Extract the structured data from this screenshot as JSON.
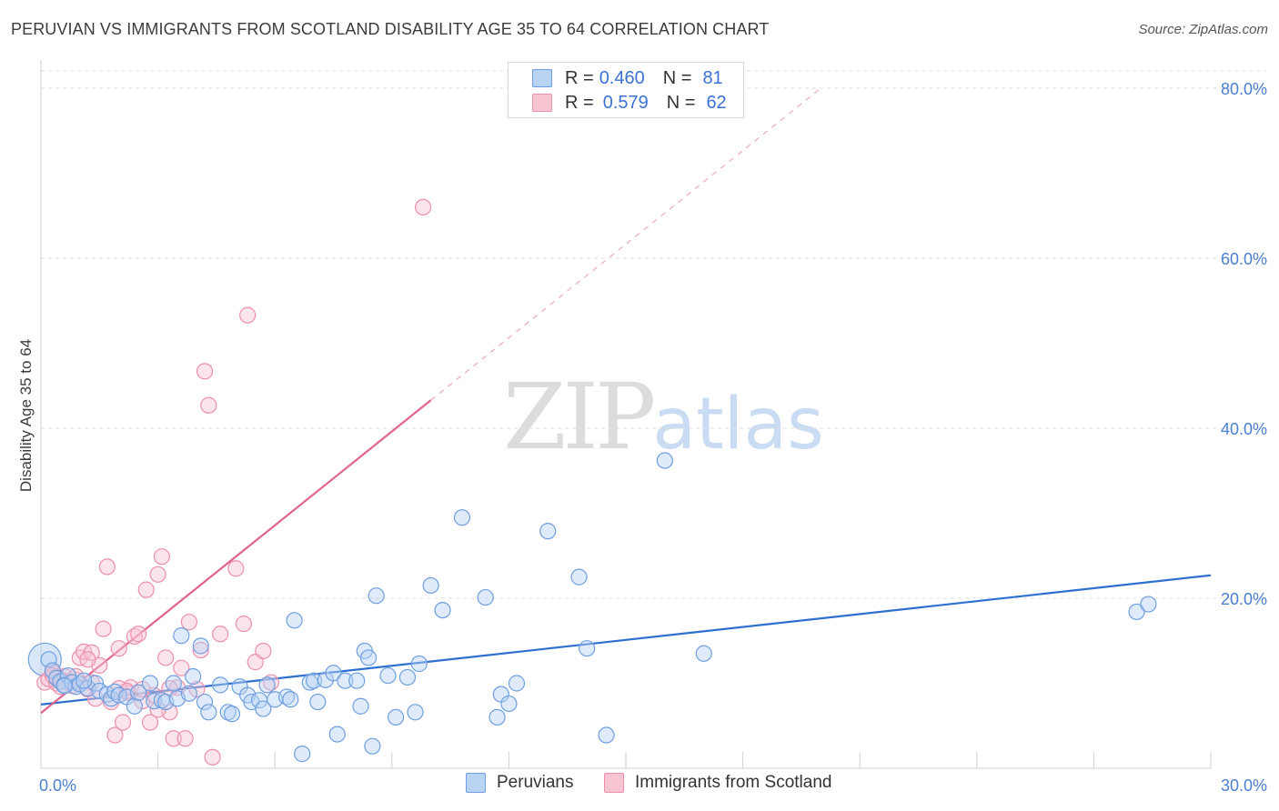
{
  "title": "PERUVIAN VS IMMIGRANTS FROM SCOTLAND DISABILITY AGE 35 TO 64 CORRELATION CHART",
  "source": "Source: ZipAtlas.com",
  "watermark": {
    "zip": "ZIP",
    "atlas": "atlas"
  },
  "legend": {
    "rows": [
      {
        "r_label": "R = ",
        "r_value": "0.460",
        "n_label": "N = ",
        "n_value": "81",
        "color": "#a9c8f2"
      },
      {
        "r_label": "R = ",
        "r_value": "0.579",
        "n_label": "N = ",
        "n_value": "62",
        "color": "#f6b7c8"
      }
    ]
  },
  "colors": {
    "blue_fill": "#b9d3f3",
    "blue_stroke": "#6f9fe0",
    "blue_line": "#2e6fcf",
    "pink_fill": "#f7c4d2",
    "pink_stroke": "#ec8fab",
    "pink_line": "#e0648f",
    "grid": "#dedede",
    "tick_text": "#4a7fd1"
  },
  "chart_data": {
    "type": "scatter",
    "title": "PERUVIAN VS IMMIGRANTS FROM SCOTLAND DISABILITY AGE 35 TO 64 CORRELATION CHART",
    "xlabel": "",
    "ylabel": "Disability Age 35 to 64",
    "xlim": [
      0,
      30
    ],
    "ylim": [
      0,
      80
    ],
    "x_tick_labels": [
      "0.0%",
      "30.0%"
    ],
    "y_tick_labels": [
      "20.0%",
      "40.0%",
      "60.0%",
      "80.0%"
    ],
    "y_ticks": [
      20,
      40,
      60,
      80
    ],
    "grid": true,
    "legend_position": "top-center",
    "series": [
      {
        "name": "Peruvians",
        "color": "#6f9fe0",
        "trend": {
          "x": [
            0,
            30
          ],
          "y": [
            7.5,
            22.7
          ]
        },
        "points": [
          [
            0.2,
            12.8
          ],
          [
            0.3,
            11.5
          ],
          [
            0.4,
            10.6
          ],
          [
            0.5,
            10.2
          ],
          [
            0.6,
            9.8
          ],
          [
            0.7,
            10.9
          ],
          [
            0.8,
            10.1
          ],
          [
            0.9,
            9.6
          ],
          [
            1.0,
            9.9
          ],
          [
            1.2,
            9.4
          ],
          [
            1.4,
            10.0
          ],
          [
            1.5,
            9.1
          ],
          [
            1.7,
            8.7
          ],
          [
            1.8,
            8.2
          ],
          [
            1.9,
            9.0
          ],
          [
            2.0,
            8.6
          ],
          [
            2.2,
            8.4
          ],
          [
            2.4,
            7.3
          ],
          [
            2.5,
            8.9
          ],
          [
            2.8,
            10.0
          ],
          [
            2.9,
            7.9
          ],
          [
            3.1,
            8.0
          ],
          [
            3.2,
            7.8
          ],
          [
            3.4,
            10.0
          ],
          [
            3.5,
            8.2
          ],
          [
            3.6,
            15.6
          ],
          [
            3.8,
            8.8
          ],
          [
            3.9,
            10.8
          ],
          [
            4.1,
            14.4
          ],
          [
            4.2,
            7.8
          ],
          [
            4.3,
            6.6
          ],
          [
            4.6,
            9.8
          ],
          [
            4.8,
            6.6
          ],
          [
            4.9,
            6.4
          ],
          [
            5.1,
            9.6
          ],
          [
            5.3,
            8.6
          ],
          [
            5.4,
            7.8
          ],
          [
            5.6,
            8.0
          ],
          [
            5.7,
            7.0
          ],
          [
            5.8,
            9.8
          ],
          [
            6.0,
            8.1
          ],
          [
            6.3,
            8.4
          ],
          [
            6.4,
            8.1
          ],
          [
            6.5,
            17.4
          ],
          [
            6.7,
            1.7
          ],
          [
            6.9,
            10.1
          ],
          [
            7.0,
            10.3
          ],
          [
            7.1,
            7.8
          ],
          [
            7.3,
            10.4
          ],
          [
            7.5,
            11.2
          ],
          [
            7.6,
            4.0
          ],
          [
            7.8,
            10.3
          ],
          [
            8.1,
            10.3
          ],
          [
            8.2,
            7.3
          ],
          [
            8.3,
            13.8
          ],
          [
            8.4,
            13.0
          ],
          [
            8.5,
            2.6
          ],
          [
            8.6,
            20.3
          ],
          [
            8.9,
            10.9
          ],
          [
            9.1,
            6.0
          ],
          [
            9.4,
            10.7
          ],
          [
            9.6,
            6.6
          ],
          [
            9.7,
            12.3
          ],
          [
            10.0,
            21.5
          ],
          [
            10.3,
            18.6
          ],
          [
            10.8,
            29.5
          ],
          [
            11.4,
            20.1
          ],
          [
            11.7,
            6.0
          ],
          [
            11.8,
            8.7
          ],
          [
            12.0,
            7.6
          ],
          [
            12.2,
            10.0
          ],
          [
            13.0,
            27.9
          ],
          [
            13.8,
            22.5
          ],
          [
            14.0,
            14.1
          ],
          [
            14.5,
            3.9
          ],
          [
            16.0,
            36.2
          ],
          [
            17.0,
            13.5
          ],
          [
            28.1,
            18.4
          ],
          [
            28.4,
            19.3
          ],
          [
            0.6,
            9.7
          ],
          [
            1.1,
            10.3
          ]
        ],
        "sizes_note": "one large point at origin",
        "large_points": [
          [
            0.1,
            12.8
          ]
        ]
      },
      {
        "name": "Immigrants from Scotland",
        "color": "#ec8fab",
        "trend": {
          "x": [
            0,
            10
          ],
          "y": [
            6.5,
            43.3
          ]
        },
        "trend_dashed": {
          "x": [
            10,
            20
          ],
          "y": [
            43.3,
            80
          ]
        },
        "points": [
          [
            0.1,
            10.1
          ],
          [
            0.2,
            10.5
          ],
          [
            0.3,
            11.3
          ],
          [
            0.4,
            10.0
          ],
          [
            0.5,
            9.6
          ],
          [
            0.6,
            10.8
          ],
          [
            0.7,
            10.2
          ],
          [
            0.8,
            9.7
          ],
          [
            0.9,
            10.4
          ],
          [
            1.0,
            13.0
          ],
          [
            1.1,
            13.7
          ],
          [
            1.2,
            9.3
          ],
          [
            1.3,
            10.1
          ],
          [
            1.4,
            8.2
          ],
          [
            1.5,
            12.1
          ],
          [
            1.6,
            16.4
          ],
          [
            1.7,
            23.7
          ],
          [
            1.8,
            7.8
          ],
          [
            1.9,
            3.9
          ],
          [
            2.0,
            14.1
          ],
          [
            2.1,
            5.4
          ],
          [
            2.2,
            8.9
          ],
          [
            2.3,
            9.5
          ],
          [
            2.4,
            15.5
          ],
          [
            2.5,
            15.8
          ],
          [
            2.6,
            7.9
          ],
          [
            2.7,
            21.0
          ],
          [
            2.8,
            5.4
          ],
          [
            2.9,
            8.6
          ],
          [
            3.0,
            22.8
          ],
          [
            3.1,
            24.9
          ],
          [
            3.2,
            13.0
          ],
          [
            3.3,
            6.6
          ],
          [
            3.4,
            3.5
          ],
          [
            3.5,
            9.5
          ],
          [
            3.6,
            11.8
          ],
          [
            3.7,
            3.5
          ],
          [
            3.8,
            17.2
          ],
          [
            4.0,
            9.3
          ],
          [
            4.1,
            13.9
          ],
          [
            4.2,
            46.7
          ],
          [
            4.3,
            42.7
          ],
          [
            4.4,
            1.3
          ],
          [
            4.6,
            15.8
          ],
          [
            5.0,
            23.5
          ],
          [
            5.2,
            17.0
          ],
          [
            5.3,
            53.3
          ],
          [
            5.5,
            12.5
          ],
          [
            5.7,
            13.8
          ],
          [
            5.9,
            10.1
          ],
          [
            9.8,
            66.0
          ],
          [
            0.4,
            10.8
          ],
          [
            0.5,
            10.4
          ],
          [
            0.3,
            10.9
          ],
          [
            1.3,
            13.6
          ],
          [
            2.0,
            9.4
          ],
          [
            2.6,
            9.3
          ],
          [
            3.3,
            9.4
          ],
          [
            0.9,
            10.8
          ],
          [
            1.2,
            12.8
          ],
          [
            2.2,
            9.1
          ],
          [
            3.0,
            6.9
          ]
        ]
      }
    ]
  },
  "bottom_legend": {
    "items": [
      "Peruvians",
      "Immigrants from Scotland"
    ]
  }
}
